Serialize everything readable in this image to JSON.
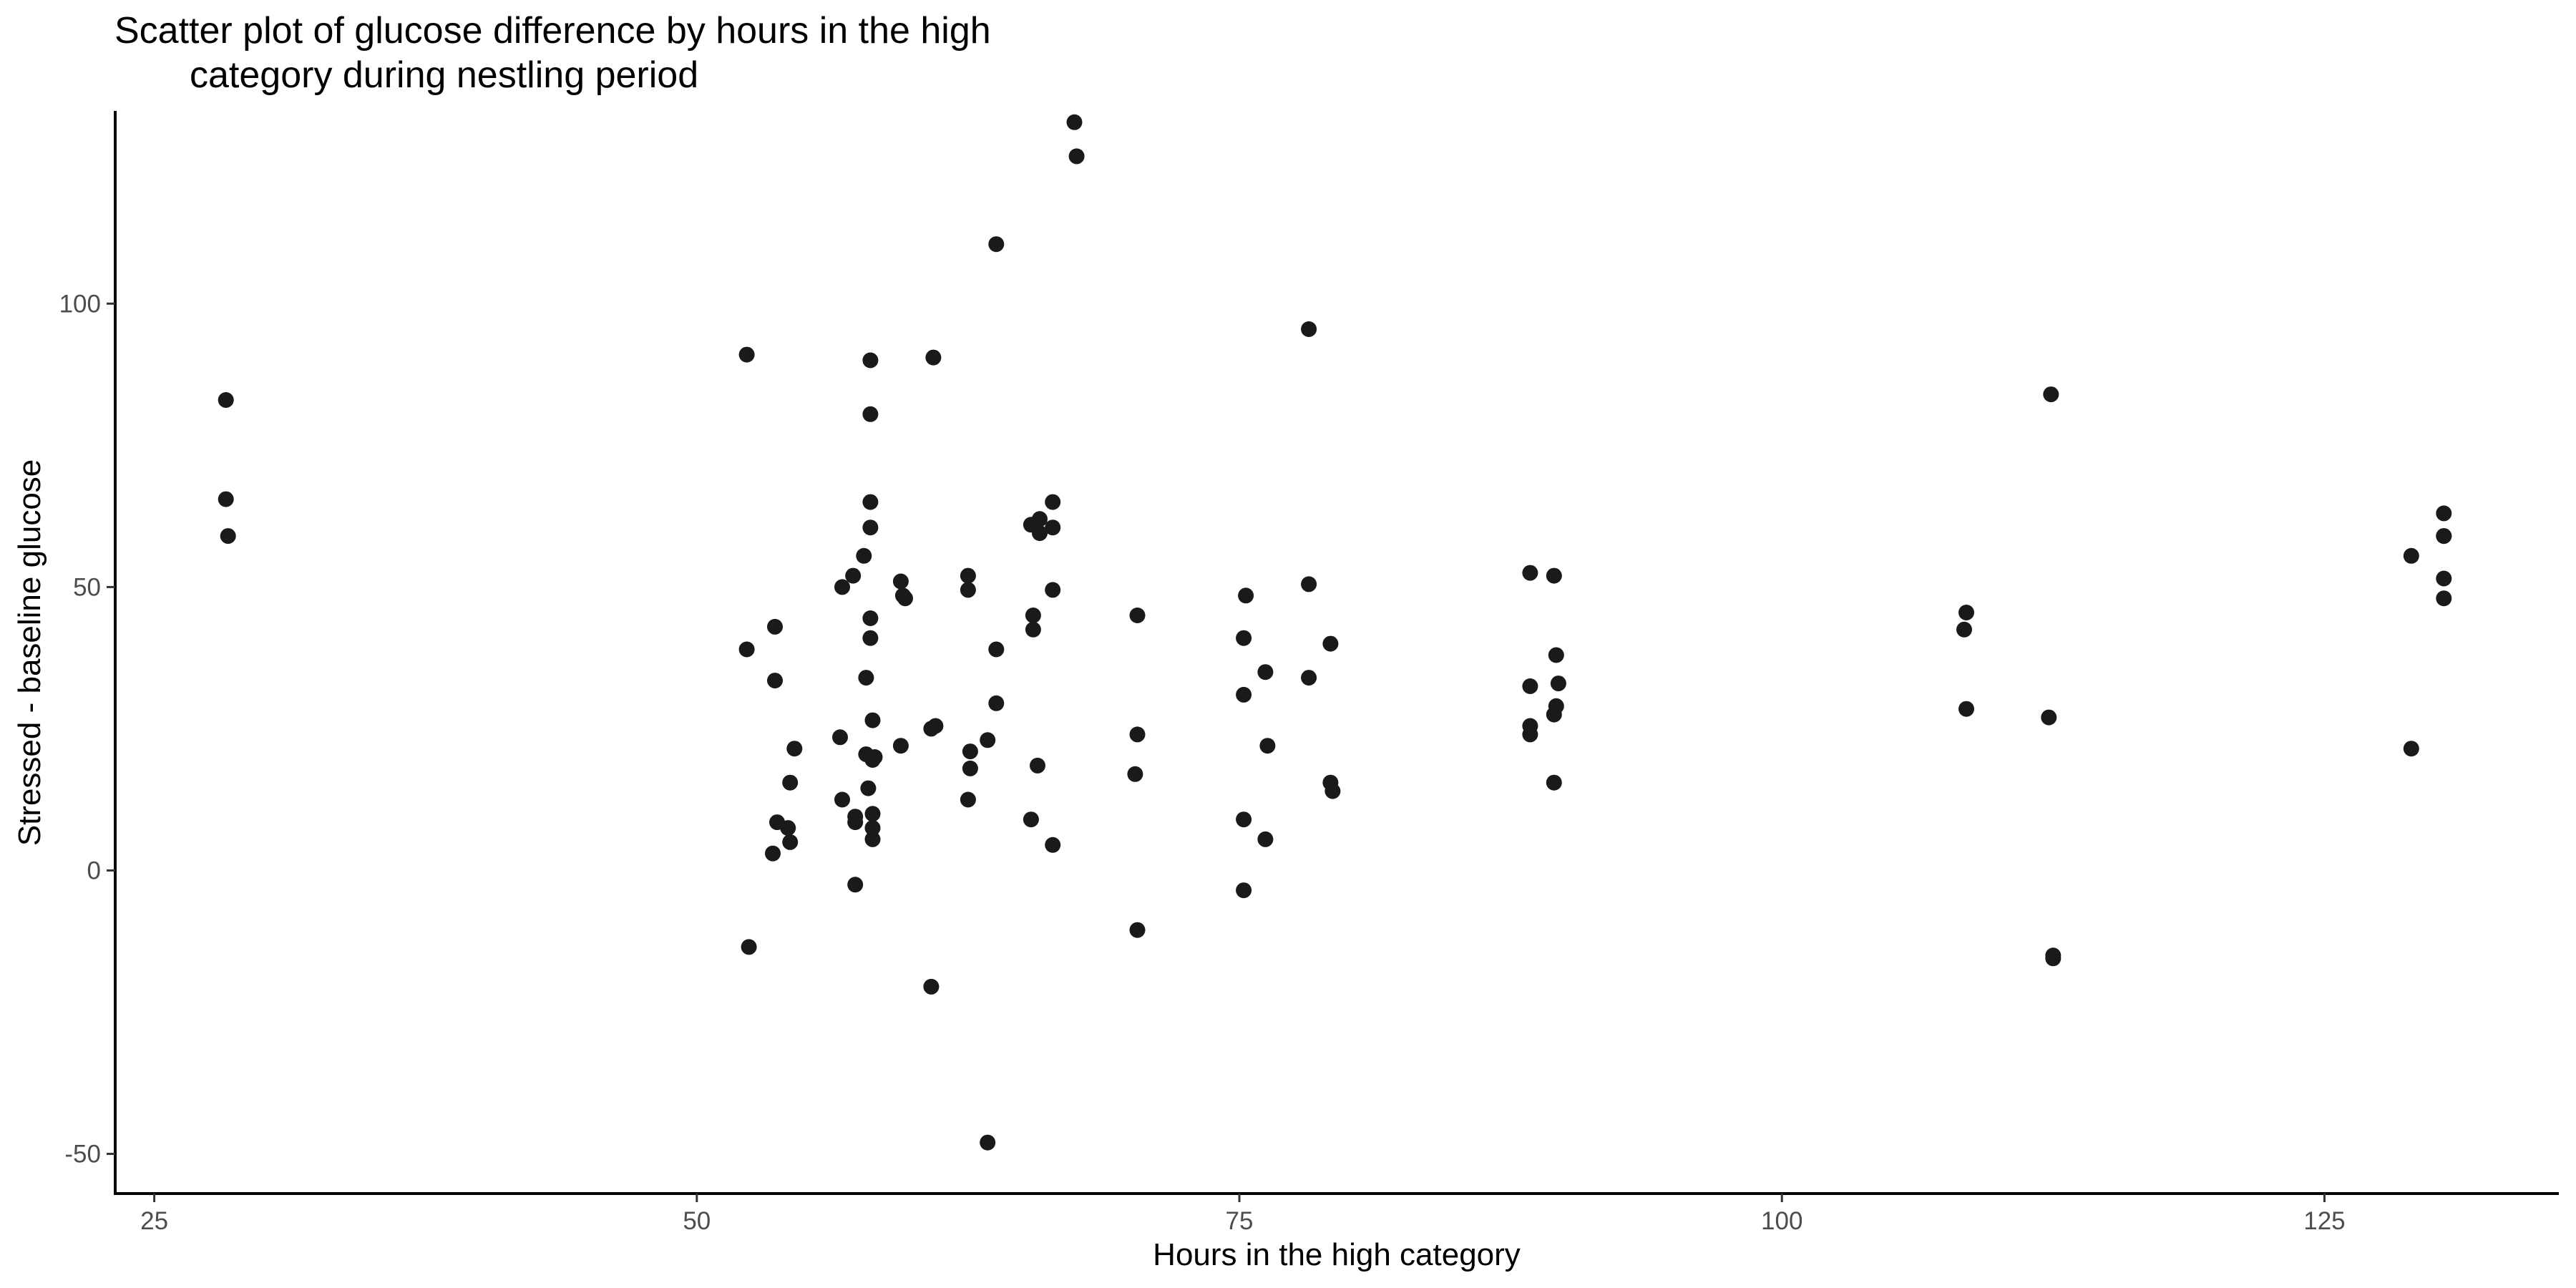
{
  "chart_data": {
    "type": "scatter",
    "title_lines": [
      "Scatter plot of glucose difference by hours in the high",
      "category during nestling period"
    ],
    "xlabel": "Hours in the high category",
    "ylabel": "Stressed - baseline glucose",
    "xlim": [
      23.2,
      135.8
    ],
    "ylim": [
      -57,
      134
    ],
    "xticks": [
      25,
      50,
      75,
      100,
      125
    ],
    "yticks": [
      -50,
      0,
      50,
      100
    ],
    "grid": false,
    "point_color": "#1a1a1a",
    "points": [
      {
        "x": 28.3,
        "y": 83
      },
      {
        "x": 28.3,
        "y": 65.5
      },
      {
        "x": 28.4,
        "y": 59
      },
      {
        "x": 52.3,
        "y": 91
      },
      {
        "x": 52.3,
        "y": 39
      },
      {
        "x": 52.4,
        "y": -13.5
      },
      {
        "x": 53.5,
        "y": 3
      },
      {
        "x": 53.6,
        "y": 43
      },
      {
        "x": 53.6,
        "y": 33.5
      },
      {
        "x": 53.7,
        "y": 8.5
      },
      {
        "x": 54.2,
        "y": 7.5
      },
      {
        "x": 54.3,
        "y": 15.5
      },
      {
        "x": 54.3,
        "y": 5
      },
      {
        "x": 54.5,
        "y": 21.5
      },
      {
        "x": 56.6,
        "y": 23.5
      },
      {
        "x": 56.7,
        "y": 50
      },
      {
        "x": 56.7,
        "y": 12.5
      },
      {
        "x": 57.2,
        "y": 52
      },
      {
        "x": 57.3,
        "y": 9.5
      },
      {
        "x": 57.3,
        "y": 8.5
      },
      {
        "x": 57.3,
        "y": -2.5
      },
      {
        "x": 57.7,
        "y": 55.5
      },
      {
        "x": 57.8,
        "y": 34
      },
      {
        "x": 57.8,
        "y": 20.5
      },
      {
        "x": 57.9,
        "y": 14.5
      },
      {
        "x": 58,
        "y": 90
      },
      {
        "x": 58,
        "y": 80.5
      },
      {
        "x": 58,
        "y": 65
      },
      {
        "x": 58,
        "y": 60.5
      },
      {
        "x": 58,
        "y": 44.5
      },
      {
        "x": 58,
        "y": 41
      },
      {
        "x": 58.1,
        "y": 26.5
      },
      {
        "x": 58.1,
        "y": 19.5
      },
      {
        "x": 58.1,
        "y": 10
      },
      {
        "x": 58.1,
        "y": 7.5
      },
      {
        "x": 58.1,
        "y": 5.5
      },
      {
        "x": 58.2,
        "y": 20
      },
      {
        "x": 59.4,
        "y": 51
      },
      {
        "x": 59.4,
        "y": 22
      },
      {
        "x": 59.5,
        "y": 48.5
      },
      {
        "x": 59.6,
        "y": 48
      },
      {
        "x": 60.9,
        "y": 90.5
      },
      {
        "x": 60.8,
        "y": 25
      },
      {
        "x": 60.8,
        "y": -20.5
      },
      {
        "x": 61,
        "y": 25.5
      },
      {
        "x": 62.5,
        "y": 52
      },
      {
        "x": 62.5,
        "y": 49.5
      },
      {
        "x": 62.6,
        "y": 21
      },
      {
        "x": 62.6,
        "y": 18
      },
      {
        "x": 62.5,
        "y": 12.5
      },
      {
        "x": 63.4,
        "y": 23
      },
      {
        "x": 63.4,
        "y": -48
      },
      {
        "x": 63.8,
        "y": 110.5
      },
      {
        "x": 63.8,
        "y": 39
      },
      {
        "x": 63.8,
        "y": 29.5
      },
      {
        "x": 65.4,
        "y": 61
      },
      {
        "x": 65.5,
        "y": 45
      },
      {
        "x": 65.5,
        "y": 42.5
      },
      {
        "x": 65.4,
        "y": 9
      },
      {
        "x": 65.8,
        "y": 62
      },
      {
        "x": 65.8,
        "y": 59.5
      },
      {
        "x": 65.7,
        "y": 18.5
      },
      {
        "x": 66.4,
        "y": 65
      },
      {
        "x": 66.4,
        "y": 60.5
      },
      {
        "x": 66.4,
        "y": 49.5
      },
      {
        "x": 66.4,
        "y": 4.5
      },
      {
        "x": 67.4,
        "y": 132
      },
      {
        "x": 67.5,
        "y": 126
      },
      {
        "x": 70.3,
        "y": 45
      },
      {
        "x": 70.3,
        "y": 24
      },
      {
        "x": 70.2,
        "y": 17
      },
      {
        "x": 70.3,
        "y": -10.5
      },
      {
        "x": 75.3,
        "y": 48.5
      },
      {
        "x": 75.2,
        "y": 41
      },
      {
        "x": 75.2,
        "y": 31
      },
      {
        "x": 75.2,
        "y": 9
      },
      {
        "x": 75.2,
        "y": -3.5
      },
      {
        "x": 76.2,
        "y": 35
      },
      {
        "x": 76.3,
        "y": 22
      },
      {
        "x": 76.2,
        "y": 5.5
      },
      {
        "x": 78.2,
        "y": 95.5
      },
      {
        "x": 78.2,
        "y": 50.5
      },
      {
        "x": 78.2,
        "y": 34
      },
      {
        "x": 79.2,
        "y": 40
      },
      {
        "x": 79.2,
        "y": 15.5
      },
      {
        "x": 79.3,
        "y": 14
      },
      {
        "x": 88.4,
        "y": 52.5
      },
      {
        "x": 88.4,
        "y": 32.5
      },
      {
        "x": 88.4,
        "y": 25.5
      },
      {
        "x": 88.4,
        "y": 24
      },
      {
        "x": 89.5,
        "y": 52
      },
      {
        "x": 89.6,
        "y": 38
      },
      {
        "x": 89.7,
        "y": 33
      },
      {
        "x": 89.6,
        "y": 29
      },
      {
        "x": 89.5,
        "y": 27.5
      },
      {
        "x": 89.5,
        "y": 15.5
      },
      {
        "x": 108.5,
        "y": 45.5
      },
      {
        "x": 108.4,
        "y": 42.5
      },
      {
        "x": 108.5,
        "y": 28.5
      },
      {
        "x": 112.4,
        "y": 84
      },
      {
        "x": 112.3,
        "y": 27
      },
      {
        "x": 112.5,
        "y": -15
      },
      {
        "x": 112.5,
        "y": -15.5
      },
      {
        "x": 129,
        "y": 55.5
      },
      {
        "x": 129,
        "y": 21.5
      },
      {
        "x": 130.5,
        "y": 63
      },
      {
        "x": 130.5,
        "y": 59
      },
      {
        "x": 130.5,
        "y": 59
      },
      {
        "x": 130.5,
        "y": 51.5
      },
      {
        "x": 130.5,
        "y": 48
      }
    ]
  }
}
